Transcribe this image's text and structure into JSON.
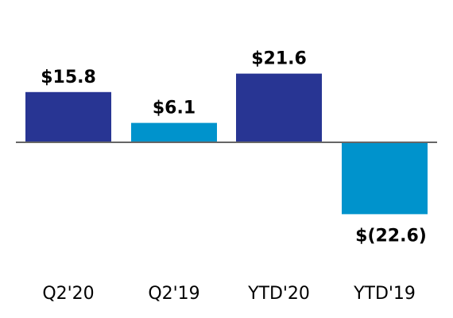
{
  "chart_data": {
    "type": "bar",
    "title": "",
    "xlabel": "",
    "ylabel": "",
    "categories": [
      "Q2'20",
      "Q2'19",
      "YTD'20",
      "YTD'19"
    ],
    "values": [
      15.8,
      6.1,
      21.6,
      -22.6
    ],
    "value_labels": [
      "$15.8",
      "$6.1",
      "$21.6",
      "$(22.6)"
    ],
    "bar_colors": [
      "#283593",
      "#0093CC",
      "#283593",
      "#0093CC"
    ],
    "ylim": [
      -30,
      45
    ],
    "grid": false,
    "legend": "none"
  },
  "colors": {
    "dark_blue": "#283593",
    "light_blue": "#0093CC",
    "axis_line": "#666666"
  }
}
